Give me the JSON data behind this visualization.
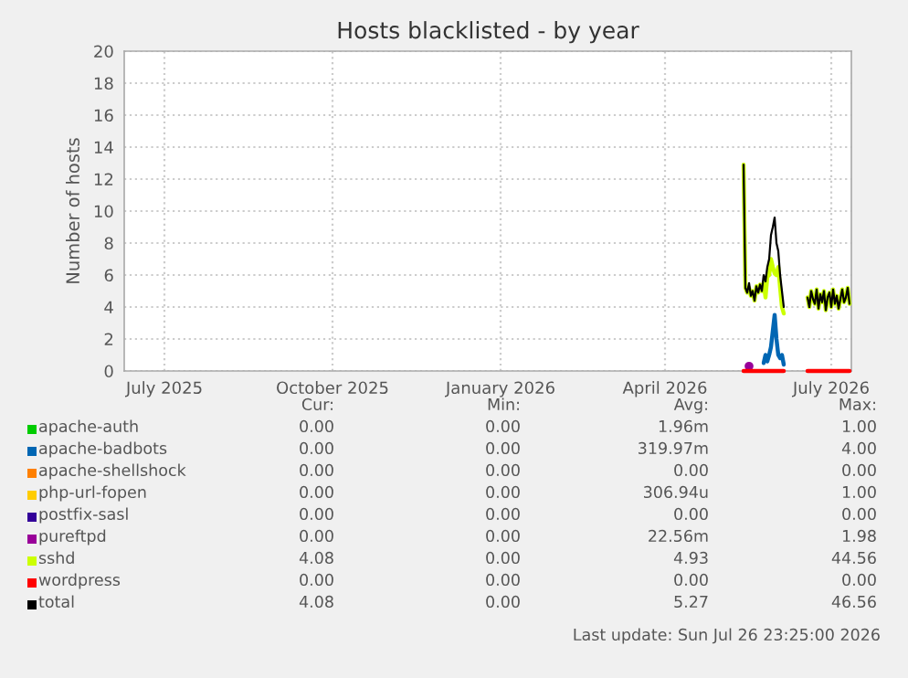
{
  "chart_data": {
    "type": "line",
    "title": "Hosts blacklisted - by year",
    "ylabel": "Number of hosts",
    "x": [
      "2026-05-14",
      "2026-05-15",
      "2026-05-16",
      "2026-05-17",
      "2026-05-18",
      "2026-05-19",
      "2026-05-20",
      "2026-05-21",
      "2026-05-22",
      "2026-05-23",
      "2026-05-24",
      "2026-05-25",
      "2026-05-26",
      "2026-05-27",
      "2026-05-28",
      "2026-05-29",
      "2026-05-30",
      "2026-05-31",
      "2026-06-01",
      "2026-06-02",
      "2026-06-03",
      "2026-06-04",
      "2026-06-05",
      "2026-06-11",
      "2026-06-18",
      "2026-06-19",
      "2026-06-20",
      "2026-06-21",
      "2026-06-22",
      "2026-06-23",
      "2026-06-24",
      "2026-06-25",
      "2026-06-26",
      "2026-06-27",
      "2026-06-28",
      "2026-06-29",
      "2026-06-30",
      "2026-07-01",
      "2026-07-02",
      "2026-07-03",
      "2026-07-04",
      "2026-07-05",
      "2026-07-06",
      "2026-07-07",
      "2026-07-08",
      "2026-07-09",
      "2026-07-10",
      "2026-07-11"
    ],
    "series": [
      {
        "name": "apache-auth",
        "color": "#00cc00",
        "values": [
          null,
          null,
          null,
          null,
          null,
          null,
          null,
          null,
          null,
          null,
          null,
          null,
          null,
          null,
          null,
          null,
          null,
          null,
          null,
          null,
          null,
          null,
          null,
          null,
          null,
          null,
          null,
          null,
          null,
          null,
          null,
          null,
          null,
          null,
          null,
          null,
          null,
          null,
          null,
          null,
          null,
          null,
          null,
          null,
          null,
          null,
          null,
          null
        ]
      },
      {
        "name": "apache-badbots",
        "color": "#0066b3",
        "values": [
          null,
          null,
          null,
          null,
          null,
          null,
          null,
          null,
          null,
          null,
          null,
          0.5,
          1.0,
          0.6,
          1.0,
          1.5,
          2.5,
          3.5,
          2.0,
          1.0,
          0.8,
          1.0,
          0.4,
          null,
          null,
          null,
          null,
          null,
          null,
          null,
          null,
          null,
          null,
          null,
          null,
          null,
          null,
          null,
          null,
          null,
          null,
          null,
          null,
          null,
          null,
          null,
          null,
          null
        ]
      },
      {
        "name": "apache-shellshock",
        "color": "#ff8000",
        "values": [
          null,
          null,
          null,
          null,
          null,
          null,
          null,
          null,
          null,
          null,
          null,
          null,
          null,
          null,
          null,
          null,
          null,
          null,
          null,
          null,
          null,
          null,
          null,
          null,
          null,
          null,
          null,
          null,
          null,
          null,
          null,
          null,
          null,
          null,
          null,
          null,
          null,
          null,
          null,
          null,
          null,
          null,
          null,
          null,
          null,
          null,
          null,
          null
        ]
      },
      {
        "name": "php-url-fopen",
        "color": "#ffcc00",
        "values": [
          null,
          null,
          null,
          null,
          null,
          null,
          null,
          null,
          null,
          null,
          null,
          null,
          null,
          null,
          null,
          null,
          null,
          null,
          null,
          null,
          null,
          null,
          null,
          null,
          null,
          null,
          null,
          null,
          null,
          null,
          null,
          null,
          null,
          null,
          null,
          null,
          null,
          null,
          null,
          null,
          null,
          null,
          null,
          null,
          null,
          null,
          null,
          null
        ]
      },
      {
        "name": "postfix-sasl",
        "color": "#330099",
        "values": [
          null,
          null,
          null,
          null,
          null,
          null,
          null,
          null,
          null,
          null,
          null,
          null,
          null,
          null,
          null,
          null,
          null,
          null,
          null,
          null,
          null,
          null,
          null,
          null,
          null,
          null,
          null,
          null,
          null,
          null,
          null,
          null,
          null,
          null,
          null,
          null,
          null,
          null,
          null,
          null,
          null,
          null,
          null,
          null,
          null,
          null,
          null,
          null
        ]
      },
      {
        "name": "pureftpd",
        "color": "#990099",
        "marker": "circle",
        "values": [
          null,
          null,
          null,
          0.3,
          null,
          null,
          null,
          null,
          null,
          null,
          null,
          null,
          null,
          null,
          null,
          null,
          null,
          null,
          null,
          null,
          null,
          null,
          null,
          null,
          null,
          null,
          null,
          null,
          null,
          null,
          null,
          null,
          null,
          null,
          null,
          null,
          null,
          null,
          null,
          null,
          null,
          null,
          null,
          null,
          null,
          null,
          null,
          null
        ]
      },
      {
        "name": "sshd",
        "color": "#ccff00",
        "values": [
          12.9,
          5.2,
          4.9,
          5.2,
          4.7,
          5.0,
          4.4,
          5.3,
          4.9,
          5.4,
          5.0,
          5.5,
          4.6,
          5.9,
          6.0,
          7.0,
          6.5,
          6.1,
          6.0,
          6.5,
          5.2,
          4.0,
          3.6,
          null,
          4.6,
          4.0,
          5.0,
          4.5,
          4.2,
          5.1,
          3.9,
          4.8,
          4.3,
          5.0,
          3.8,
          4.6,
          4.9,
          4.0,
          5.1,
          4.2,
          4.7,
          3.9,
          4.5,
          5.1,
          4.3,
          4.6,
          5.2,
          4.2
        ]
      },
      {
        "name": "wordpress",
        "color": "#ff0000",
        "values": [
          0,
          0,
          0,
          0,
          0,
          0,
          0,
          0,
          0,
          0,
          0,
          0,
          0,
          0,
          0,
          0,
          0,
          0,
          0,
          0,
          0,
          0,
          0,
          null,
          0,
          0,
          0,
          0,
          0,
          0,
          0,
          0,
          0,
          0,
          0,
          0,
          0,
          0,
          0,
          0,
          0,
          0,
          0,
          0,
          0,
          0,
          0,
          0
        ]
      },
      {
        "name": "total",
        "color": "#000000",
        "values": [
          12.9,
          5.2,
          4.9,
          5.5,
          4.7,
          5.0,
          4.4,
          5.3,
          4.9,
          5.4,
          5.0,
          6.0,
          5.6,
          6.5,
          7.0,
          8.5,
          9.0,
          9.6,
          8.0,
          7.5,
          6.0,
          5.0,
          4.0,
          null,
          4.6,
          4.0,
          5.0,
          4.5,
          4.2,
          5.1,
          3.9,
          4.8,
          4.3,
          5.0,
          3.8,
          4.6,
          4.9,
          4.0,
          5.1,
          4.2,
          4.7,
          3.9,
          4.5,
          5.1,
          4.3,
          4.6,
          5.2,
          4.2
        ]
      }
    ],
    "xlim": [
      "2025-06-09",
      "2026-07-12"
    ],
    "xticks": [
      {
        "value": "2025-07-01",
        "label": "July 2025"
      },
      {
        "value": "2025-10-01",
        "label": "October 2025"
      },
      {
        "value": "2026-01-01",
        "label": "January 2026"
      },
      {
        "value": "2026-04-01",
        "label": "April 2026"
      },
      {
        "value": "2026-07-01",
        "label": "July 2026"
      }
    ],
    "ylim": [
      0,
      20
    ],
    "yticks": [
      0,
      2,
      4,
      6,
      8,
      10,
      12,
      14,
      16,
      18,
      20
    ],
    "grid": true,
    "legend": "bottom",
    "annotations": [
      "Cur:",
      "Min:",
      "Avg:",
      "Max:",
      "0.00",
      "0.00",
      "1.96m",
      "1.00",
      "0.00",
      "0.00",
      "319.97m",
      "4.00",
      "0.00",
      "0.00",
      "0.00",
      "0.00",
      "0.00",
      "0.00",
      "306.94u",
      "1.00",
      "0.00",
      "0.00",
      "0.00",
      "0.00",
      "0.00",
      "0.00",
      "22.56m",
      "1.98",
      "4.08",
      "0.00",
      "4.93",
      "44.56",
      "0.00",
      "0.00",
      "0.00",
      "0.00",
      "4.08",
      "0.00",
      "5.27",
      "46.56",
      "Last update: Sun Jul 26 23:25:00 2026"
    ]
  }
}
